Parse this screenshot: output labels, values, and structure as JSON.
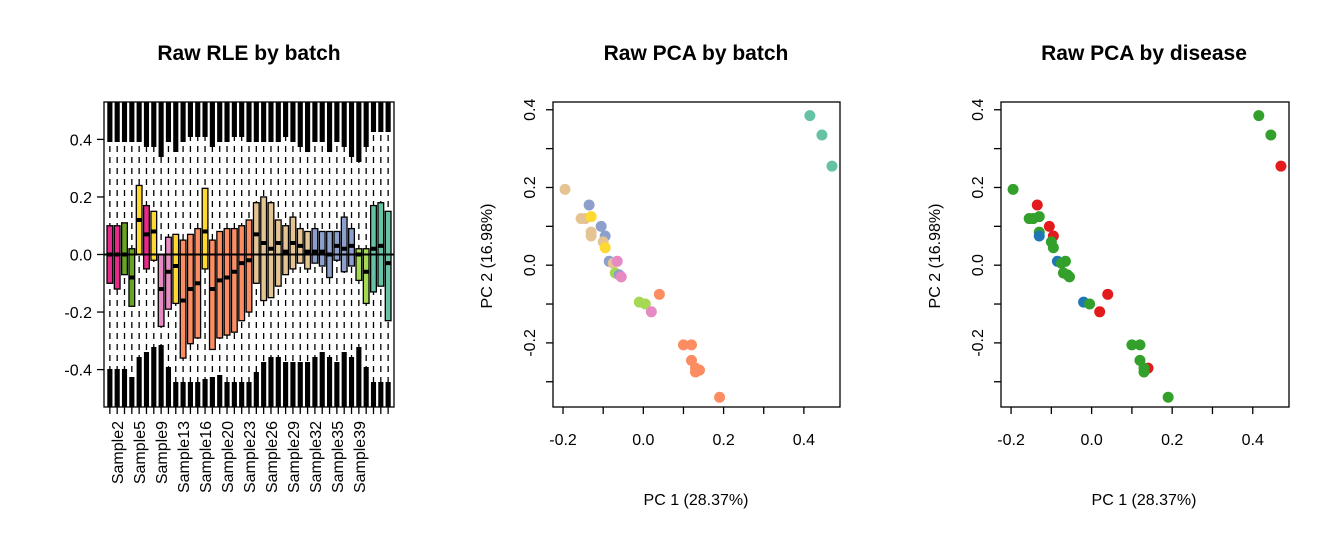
{
  "chart_data": [
    {
      "type": "boxplot",
      "title": "Raw RLE by batch",
      "xlabel": "",
      "ylabel": "",
      "ylim": [
        -0.53,
        0.53
      ],
      "yticks": [
        "-0.4",
        "-0.2",
        "0.0",
        "0.2",
        "0.4"
      ],
      "reference_line": 0,
      "xtick_labels": [
        "Sample2",
        "Sample5",
        "Sample9",
        "Sample13",
        "Sample16",
        "Sample20",
        "Sample23",
        "Sample26",
        "Sample29",
        "Sample32",
        "Sample35",
        "Sample39"
      ],
      "colors": [
        "#E7298A",
        "#E7298A",
        "#66A61E",
        "#66A61E",
        "#FFD92F",
        "#E7298A",
        "#FFD92F",
        "#E78AC3",
        "#E78AC3",
        "#FFD92F",
        "#FC8D62",
        "#FC8D62",
        "#FC8D62",
        "#FFD92F",
        "#FC8D62",
        "#FC8D62",
        "#FC8D62",
        "#FC8D62",
        "#FC8D62",
        "#FC8D62",
        "#E5C494",
        "#E5C494",
        "#E5C494",
        "#E5C494",
        "#E5C494",
        "#E5C494",
        "#E5C494",
        "#E5C494",
        "#8DA0CB",
        "#8DA0CB",
        "#8DA0CB",
        "#8DA0CB",
        "#8DA0CB",
        "#8DA0CB",
        "#A6D854",
        "#A6D854",
        "#66C2A5",
        "#66C2A5",
        "#66C2A5"
      ],
      "boxes": [
        {
          "q1": -0.1,
          "median": 0.0,
          "q3": 0.1
        },
        {
          "q1": -0.12,
          "median": 0.0,
          "q3": 0.1
        },
        {
          "q1": -0.07,
          "median": 0.0,
          "q3": 0.11
        },
        {
          "q1": -0.18,
          "median": -0.08,
          "q3": 0.02
        },
        {
          "q1": 0.0,
          "median": 0.12,
          "q3": 0.24
        },
        {
          "q1": -0.05,
          "median": 0.07,
          "q3": 0.17
        },
        {
          "q1": -0.02,
          "median": 0.08,
          "q3": 0.15
        },
        {
          "q1": -0.25,
          "median": -0.12,
          "q3": 0.0
        },
        {
          "q1": -0.19,
          "median": -0.06,
          "q3": 0.06
        },
        {
          "q1": -0.17,
          "median": -0.04,
          "q3": 0.07
        },
        {
          "q1": -0.36,
          "median": -0.16,
          "q3": 0.05
        },
        {
          "q1": -0.31,
          "median": -0.12,
          "q3": 0.07
        },
        {
          "q1": -0.29,
          "median": -0.1,
          "q3": 0.09
        },
        {
          "q1": -0.05,
          "median": 0.08,
          "q3": 0.23
        },
        {
          "q1": -0.33,
          "median": -0.12,
          "q3": 0.05
        },
        {
          "q1": -0.29,
          "median": -0.09,
          "q3": 0.08
        },
        {
          "q1": -0.28,
          "median": -0.08,
          "q3": 0.09
        },
        {
          "q1": -0.27,
          "median": -0.06,
          "q3": 0.09
        },
        {
          "q1": -0.23,
          "median": -0.03,
          "q3": 0.1
        },
        {
          "q1": -0.2,
          "median": -0.02,
          "q3": 0.12
        },
        {
          "q1": -0.1,
          "median": 0.07,
          "q3": 0.18
        },
        {
          "q1": -0.16,
          "median": 0.04,
          "q3": 0.2
        },
        {
          "q1": -0.15,
          "median": 0.02,
          "q3": 0.18
        },
        {
          "q1": -0.11,
          "median": 0.04,
          "q3": 0.12
        },
        {
          "q1": -0.07,
          "median": 0.01,
          "q3": 0.1
        },
        {
          "q1": -0.05,
          "median": 0.04,
          "q3": 0.13
        },
        {
          "q1": -0.03,
          "median": 0.03,
          "q3": 0.09
        },
        {
          "q1": -0.05,
          "median": 0.01,
          "q3": 0.08
        },
        {
          "q1": -0.03,
          "median": 0.01,
          "q3": 0.09
        },
        {
          "q1": -0.04,
          "median": 0.01,
          "q3": 0.08
        },
        {
          "q1": -0.08,
          "median": 0.0,
          "q3": 0.08
        },
        {
          "q1": -0.02,
          "median": 0.03,
          "q3": 0.08
        },
        {
          "q1": -0.06,
          "median": 0.02,
          "q3": 0.13
        },
        {
          "q1": -0.04,
          "median": 0.03,
          "q3": 0.09
        },
        {
          "q1": -0.09,
          "median": 0.0,
          "q3": 0.02
        },
        {
          "q1": -0.17,
          "median": -0.06,
          "q3": 0.02
        },
        {
          "q1": -0.13,
          "median": 0.02,
          "q3": 0.17
        },
        {
          "q1": -0.11,
          "median": 0.03,
          "q3": 0.18
        },
        {
          "q1": -0.23,
          "median": -0.03,
          "q3": 0.15
        }
      ]
    },
    {
      "type": "scatter",
      "title": "Raw PCA by batch",
      "xlabel": "PC 1 (28.37%)",
      "ylabel": "PC 2 (16.98%)",
      "xlim": [
        -0.225,
        0.49
      ],
      "ylim": [
        -0.365,
        0.42
      ],
      "xticks": [
        "-0.2",
        "0.0",
        "0.2",
        "0.4"
      ],
      "yticks": [
        "-0.2",
        "0.0",
        "0.2",
        "0.4"
      ],
      "points": [
        {
          "x": -0.195,
          "y": 0.195,
          "color": "#E5C494"
        },
        {
          "x": -0.155,
          "y": 0.12,
          "color": "#E5C494"
        },
        {
          "x": -0.145,
          "y": 0.12,
          "color": "#E5C494"
        },
        {
          "x": -0.135,
          "y": 0.155,
          "color": "#8DA0CB"
        },
        {
          "x": -0.13,
          "y": 0.125,
          "color": "#FFD92F"
        },
        {
          "x": -0.13,
          "y": 0.085,
          "color": "#E5C494"
        },
        {
          "x": -0.13,
          "y": 0.075,
          "color": "#E5C494"
        },
        {
          "x": -0.105,
          "y": 0.1,
          "color": "#8DA0CB"
        },
        {
          "x": -0.095,
          "y": 0.075,
          "color": "#8DA0CB"
        },
        {
          "x": -0.1,
          "y": 0.06,
          "color": "#E5C494"
        },
        {
          "x": -0.095,
          "y": 0.045,
          "color": "#FFD92F"
        },
        {
          "x": -0.085,
          "y": 0.01,
          "color": "#8DA0CB"
        },
        {
          "x": -0.075,
          "y": 0.005,
          "color": "#E5C494"
        },
        {
          "x": -0.065,
          "y": 0.01,
          "color": "#E78AC3"
        },
        {
          "x": -0.07,
          "y": -0.02,
          "color": "#A6D854"
        },
        {
          "x": -0.06,
          "y": -0.025,
          "color": "#8DA0CB"
        },
        {
          "x": -0.055,
          "y": -0.03,
          "color": "#E78AC3"
        },
        {
          "x": -0.01,
          "y": -0.095,
          "color": "#A6D854"
        },
        {
          "x": 0.005,
          "y": -0.1,
          "color": "#A6D854"
        },
        {
          "x": 0.02,
          "y": -0.12,
          "color": "#E78AC3"
        },
        {
          "x": 0.04,
          "y": -0.075,
          "color": "#FC8D62"
        },
        {
          "x": 0.1,
          "y": -0.205,
          "color": "#FC8D62"
        },
        {
          "x": 0.12,
          "y": -0.205,
          "color": "#FC8D62"
        },
        {
          "x": 0.12,
          "y": -0.245,
          "color": "#FC8D62"
        },
        {
          "x": 0.13,
          "y": -0.265,
          "color": "#FC8D62"
        },
        {
          "x": 0.14,
          "y": -0.27,
          "color": "#FC8D62"
        },
        {
          "x": 0.13,
          "y": -0.275,
          "color": "#FC8D62"
        },
        {
          "x": 0.19,
          "y": -0.34,
          "color": "#FC8D62"
        },
        {
          "x": 0.415,
          "y": 0.385,
          "color": "#66C2A5"
        },
        {
          "x": 0.445,
          "y": 0.335,
          "color": "#66C2A5"
        },
        {
          "x": 0.47,
          "y": 0.255,
          "color": "#66C2A5"
        }
      ]
    },
    {
      "type": "scatter",
      "title": "Raw PCA by disease",
      "xlabel": "PC 1 (28.37%)",
      "ylabel": "PC 2 (16.98%)",
      "xlim": [
        -0.225,
        0.49
      ],
      "ylim": [
        -0.365,
        0.42
      ],
      "xticks": [
        "-0.2",
        "0.0",
        "0.2",
        "0.4"
      ],
      "yticks": [
        "-0.2",
        "0.0",
        "0.2",
        "0.4"
      ],
      "points": [
        {
          "x": -0.195,
          "y": 0.195,
          "color": "#33A02C"
        },
        {
          "x": -0.155,
          "y": 0.12,
          "color": "#33A02C"
        },
        {
          "x": -0.145,
          "y": 0.12,
          "color": "#33A02C"
        },
        {
          "x": -0.135,
          "y": 0.155,
          "color": "#E31A1C"
        },
        {
          "x": -0.13,
          "y": 0.125,
          "color": "#33A02C"
        },
        {
          "x": -0.13,
          "y": 0.085,
          "color": "#33A02C"
        },
        {
          "x": -0.13,
          "y": 0.075,
          "color": "#1F78B4"
        },
        {
          "x": -0.105,
          "y": 0.1,
          "color": "#E31A1C"
        },
        {
          "x": -0.095,
          "y": 0.075,
          "color": "#E31A1C"
        },
        {
          "x": -0.1,
          "y": 0.06,
          "color": "#33A02C"
        },
        {
          "x": -0.095,
          "y": 0.045,
          "color": "#33A02C"
        },
        {
          "x": -0.085,
          "y": 0.01,
          "color": "#1F78B4"
        },
        {
          "x": -0.075,
          "y": 0.005,
          "color": "#33A02C"
        },
        {
          "x": -0.065,
          "y": 0.01,
          "color": "#33A02C"
        },
        {
          "x": -0.07,
          "y": -0.02,
          "color": "#33A02C"
        },
        {
          "x": -0.06,
          "y": -0.025,
          "color": "#33A02C"
        },
        {
          "x": -0.055,
          "y": -0.03,
          "color": "#33A02C"
        },
        {
          "x": -0.02,
          "y": -0.095,
          "color": "#1F78B4"
        },
        {
          "x": -0.005,
          "y": -0.1,
          "color": "#33A02C"
        },
        {
          "x": 0.02,
          "y": -0.12,
          "color": "#E31A1C"
        },
        {
          "x": 0.04,
          "y": -0.075,
          "color": "#E31A1C"
        },
        {
          "x": 0.1,
          "y": -0.205,
          "color": "#33A02C"
        },
        {
          "x": 0.12,
          "y": -0.205,
          "color": "#33A02C"
        },
        {
          "x": 0.12,
          "y": -0.245,
          "color": "#33A02C"
        },
        {
          "x": 0.14,
          "y": -0.265,
          "color": "#E31A1C"
        },
        {
          "x": 0.13,
          "y": -0.265,
          "color": "#33A02C"
        },
        {
          "x": 0.13,
          "y": -0.275,
          "color": "#33A02C"
        },
        {
          "x": 0.19,
          "y": -0.34,
          "color": "#33A02C"
        },
        {
          "x": 0.415,
          "y": 0.385,
          "color": "#33A02C"
        },
        {
          "x": 0.445,
          "y": 0.335,
          "color": "#33A02C"
        },
        {
          "x": 0.47,
          "y": 0.255,
          "color": "#E31A1C"
        }
      ]
    }
  ]
}
